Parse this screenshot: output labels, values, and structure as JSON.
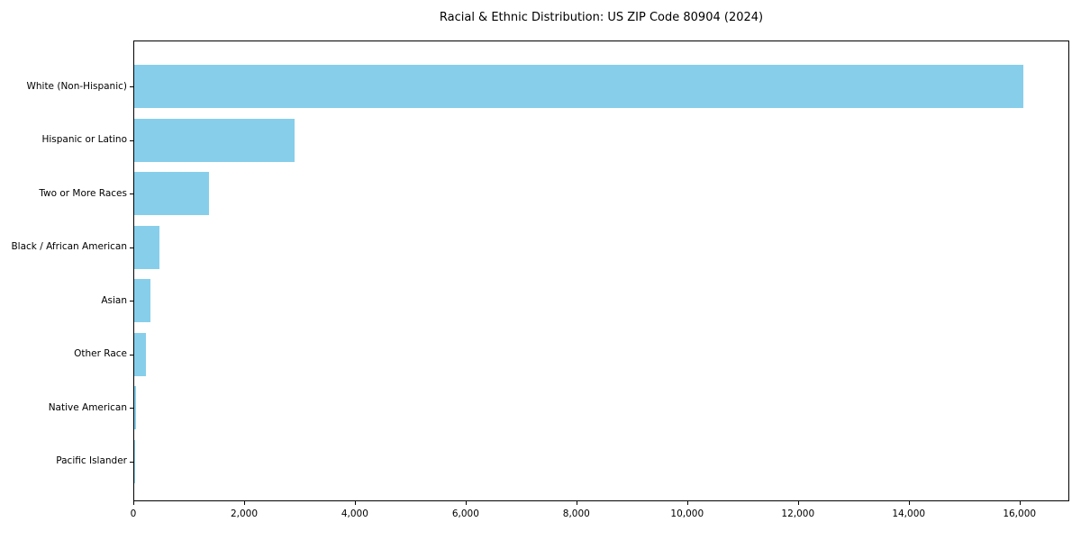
{
  "chart_data": {
    "type": "bar",
    "orientation": "horizontal",
    "title": "Racial & Ethnic Distribution: US ZIP Code 80904 (2024)",
    "categories": [
      "White (Non-Hispanic)",
      "Hispanic or Latino",
      "Two or More Races",
      "Black / African American",
      "Asian",
      "Other Race",
      "Native American",
      "Pacific Islander"
    ],
    "values": [
      16050,
      2900,
      1350,
      450,
      300,
      210,
      30,
      10
    ],
    "xlim": [
      0,
      16900
    ],
    "x_ticks": [
      0,
      2000,
      4000,
      6000,
      8000,
      10000,
      12000,
      14000,
      16000
    ],
    "x_tick_labels": [
      "0",
      "2,000",
      "4,000",
      "6,000",
      "8,000",
      "10,000",
      "12,000",
      "14,000",
      "16,000"
    ],
    "bar_color": "#87CEEB",
    "grid": false,
    "legend": false
  },
  "colors": {
    "bar": "#87CEEB",
    "text": "#000000",
    "spine": "#000000",
    "background": "#ffffff"
  }
}
